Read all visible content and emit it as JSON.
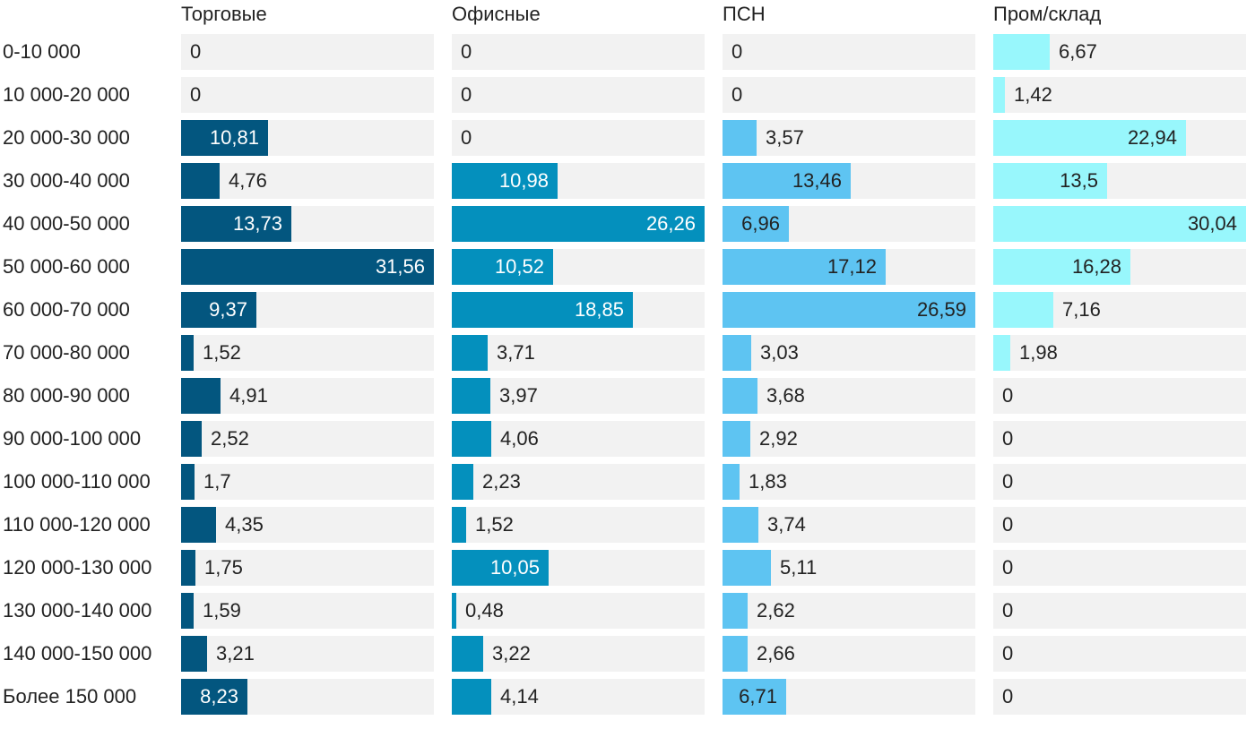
{
  "chart_data": {
    "type": "bar",
    "orientation": "horizontal",
    "layout": "small-multiples",
    "categories": [
      "0-10 000",
      "10 000-20 000",
      "20 000-30 000",
      "30 000-40 000",
      "40 000-50 000",
      "50 000-60 000",
      "60 000-70 000",
      "70 000-80 000",
      "80 000-90 000",
      "90 000-100 000",
      "100 000-110 000",
      "110 000-120 000",
      "120 000-130 000",
      "130 000-140 000",
      "140 000-150 000",
      "Более 150 000"
    ],
    "series": [
      {
        "name": "Торговые",
        "color": "#03567f",
        "text_on_bar": "#ffffff",
        "values": [
          0,
          0,
          10.81,
          4.76,
          13.73,
          31.56,
          9.37,
          1.52,
          4.91,
          2.52,
          1.7,
          4.35,
          1.75,
          1.59,
          3.21,
          8.23
        ],
        "labels": [
          "0",
          "0",
          "10,81",
          "4,76",
          "13,73",
          "31,56",
          "9,37",
          "1,52",
          "4,91",
          "2,52",
          "1,7",
          "4,35",
          "1,75",
          "1,59",
          "3,21",
          "8,23"
        ]
      },
      {
        "name": "Офисные",
        "color": "#0490bd",
        "text_on_bar": "#ffffff",
        "values": [
          0,
          0,
          0,
          10.98,
          26.26,
          10.52,
          18.85,
          3.71,
          3.97,
          4.06,
          2.23,
          1.52,
          10.05,
          0.48,
          3.22,
          4.14
        ],
        "labels": [
          "0",
          "0",
          "0",
          "10,98",
          "26,26",
          "10,52",
          "18,85",
          "3,71",
          "3,97",
          "4,06",
          "2,23",
          "1,52",
          "10,05",
          "0,48",
          "3,22",
          "4,14"
        ]
      },
      {
        "name": "ПСН",
        "color": "#5ec4f2",
        "text_on_bar": "#222222",
        "values": [
          0,
          0,
          3.57,
          13.46,
          6.96,
          17.12,
          26.59,
          3.03,
          3.68,
          2.92,
          1.83,
          3.74,
          5.11,
          2.62,
          2.66,
          6.71
        ],
        "labels": [
          "0",
          "0",
          "3,57",
          "13,46",
          "6,96",
          "17,12",
          "26,59",
          "3,03",
          "3,68",
          "2,92",
          "1,83",
          "3,74",
          "5,11",
          "2,62",
          "2,66",
          "6,71"
        ]
      },
      {
        "name": "Пром/склад",
        "color": "#98f7fc",
        "text_on_bar": "#222222",
        "values": [
          6.67,
          1.42,
          22.94,
          13.5,
          30.04,
          16.28,
          7.16,
          1.98,
          0,
          0,
          0,
          0,
          0,
          0,
          0,
          0
        ],
        "labels": [
          "6,67",
          "1,42",
          "22,94",
          "13,5",
          "30,04",
          "16,28",
          "7,16",
          "1,98",
          "0",
          "0",
          "0",
          "0",
          "0",
          "0",
          "0",
          "0"
        ]
      }
    ],
    "track_color": "#f2f2f2",
    "grid": false,
    "legend": "none"
  }
}
